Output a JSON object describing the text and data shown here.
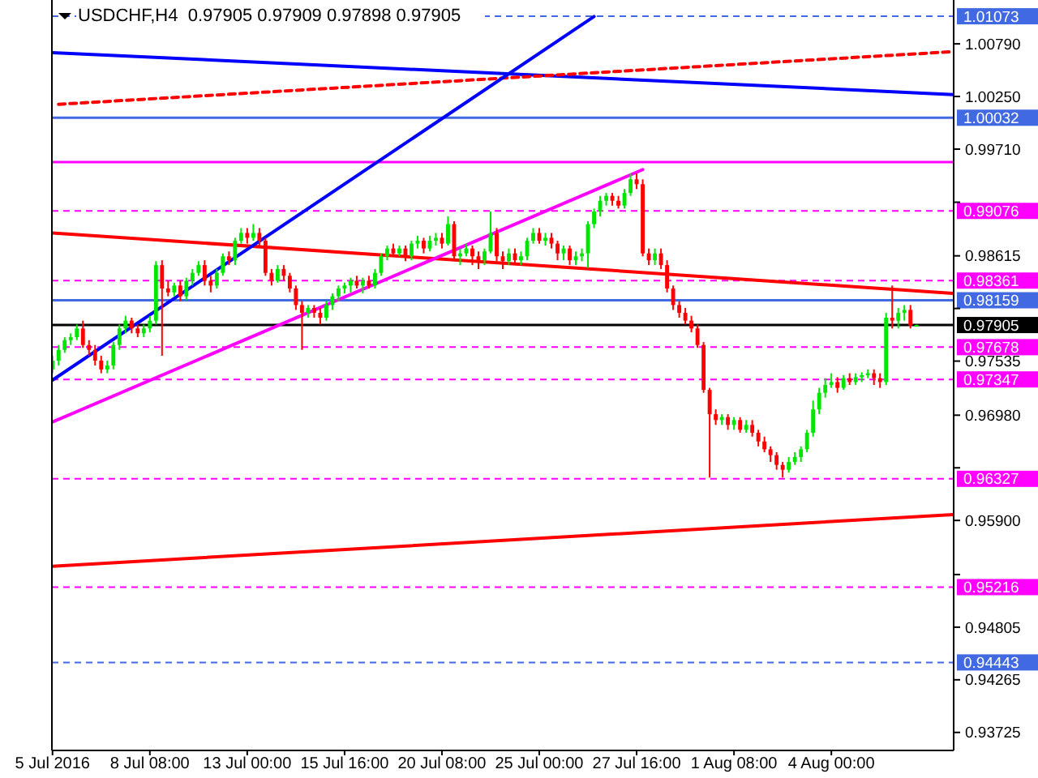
{
  "chart_data": {
    "type": "candlestick",
    "title": "USDCHF,H4  0.97905 0.97909 0.97898 0.97905",
    "categories": [
      "5 Jul 2016",
      null,
      null,
      null,
      null,
      null,
      null,
      null,
      null,
      null,
      null,
      null,
      null,
      null,
      null,
      null,
      "8 Jul 08:00",
      null,
      null,
      null,
      null,
      null,
      null,
      null,
      null,
      null,
      null,
      null,
      null,
      null,
      null,
      null,
      "13 Jul 00:00",
      null,
      null,
      null,
      null,
      null,
      null,
      null,
      null,
      null,
      null,
      null,
      null,
      null,
      null,
      null,
      "15 Jul 16:00",
      null,
      null,
      null,
      null,
      null,
      null,
      null,
      null,
      null,
      null,
      null,
      null,
      null,
      null,
      null,
      "20 Jul 08:00",
      null,
      null,
      null,
      null,
      null,
      null,
      null,
      null,
      null,
      null,
      null,
      null,
      null,
      null,
      null,
      "25 Jul 00:00",
      null,
      null,
      null,
      null,
      null,
      null,
      null,
      null,
      null,
      null,
      null,
      null,
      null,
      null,
      null,
      "27 Jul 16:00",
      null,
      null,
      null,
      null,
      null,
      null,
      null,
      null,
      null,
      null,
      null,
      null,
      null,
      null,
      null,
      "1 Aug 08:00",
      null,
      null,
      null,
      null,
      null,
      null,
      null,
      null,
      null,
      null,
      null,
      null,
      null,
      null,
      null,
      "4 Aug 00:00",
      null,
      null,
      null,
      null,
      null,
      null,
      null,
      null,
      null,
      null,
      null,
      null,
      null,
      null,
      null,
      null,
      null,
      null,
      null,
      null
    ],
    "ohlc": [
      [
        0.9745,
        0.9759,
        0.9741,
        0.9754
      ],
      [
        0.9754,
        0.977,
        0.9749,
        0.9765
      ],
      [
        0.9765,
        0.9778,
        0.9762,
        0.9775
      ],
      [
        0.9775,
        0.9782,
        0.977,
        0.9778
      ],
      [
        0.9778,
        0.9791,
        0.9775,
        0.9787
      ],
      [
        0.9787,
        0.9795,
        0.9767,
        0.977
      ],
      [
        0.977,
        0.9775,
        0.9759,
        0.9765
      ],
      [
        0.9765,
        0.977,
        0.9749,
        0.9754
      ],
      [
        0.9754,
        0.9759,
        0.9741,
        0.9745
      ],
      [
        0.9745,
        0.9754,
        0.9741,
        0.9749
      ],
      [
        0.9749,
        0.9773,
        0.9745,
        0.977
      ],
      [
        0.977,
        0.9791,
        0.9765,
        0.9787
      ],
      [
        0.9787,
        0.98,
        0.9782,
        0.9795
      ],
      [
        0.9795,
        0.9798,
        0.9782,
        0.9787
      ],
      [
        0.9787,
        0.9791,
        0.9778,
        0.9782
      ],
      [
        0.9782,
        0.9791,
        0.9778,
        0.9787
      ],
      [
        0.9787,
        0.98,
        0.9783,
        0.9795
      ],
      [
        0.9795,
        0.9856,
        0.9791,
        0.9852
      ],
      [
        0.9852,
        0.9857,
        0.9759,
        0.9828
      ],
      [
        0.9828,
        0.9836,
        0.982,
        0.9824
      ],
      [
        0.9824,
        0.9834,
        0.982,
        0.9831
      ],
      [
        0.9831,
        0.9836,
        0.9815,
        0.982
      ],
      [
        0.982,
        0.9839,
        0.9816,
        0.9836
      ],
      [
        0.9836,
        0.9848,
        0.9831,
        0.9844
      ],
      [
        0.9844,
        0.9856,
        0.9841,
        0.9852
      ],
      [
        0.9852,
        0.9857,
        0.9831,
        0.9836
      ],
      [
        0.9836,
        0.9841,
        0.9824,
        0.9831
      ],
      [
        0.9831,
        0.9848,
        0.9828,
        0.9844
      ],
      [
        0.9844,
        0.9864,
        0.9841,
        0.9861
      ],
      [
        0.9861,
        0.9866,
        0.9852,
        0.9857
      ],
      [
        0.9857,
        0.988,
        0.9852,
        0.9877
      ],
      [
        0.9877,
        0.989,
        0.9874,
        0.9885
      ],
      [
        0.9885,
        0.989,
        0.9874,
        0.988
      ],
      [
        0.988,
        0.9894,
        0.9877,
        0.9885
      ],
      [
        0.9885,
        0.989,
        0.9872,
        0.9877
      ],
      [
        0.9877,
        0.988,
        0.9841,
        0.9844
      ],
      [
        0.9844,
        0.9848,
        0.9831,
        0.9836
      ],
      [
        0.9836,
        0.9852,
        0.9834,
        0.9848
      ],
      [
        0.9848,
        0.9852,
        0.9836,
        0.9841
      ],
      [
        0.9841,
        0.9844,
        0.9824,
        0.9828
      ],
      [
        0.9828,
        0.9831,
        0.9806,
        0.9811
      ],
      [
        0.9811,
        0.9815,
        0.9765,
        0.9803
      ],
      [
        0.9803,
        0.9811,
        0.9798,
        0.9808
      ],
      [
        0.9808,
        0.9811,
        0.9798,
        0.9803
      ],
      [
        0.9803,
        0.9808,
        0.9791,
        0.9798
      ],
      [
        0.9798,
        0.9815,
        0.9795,
        0.9811
      ],
      [
        0.9811,
        0.9823,
        0.9806,
        0.982
      ],
      [
        0.982,
        0.9831,
        0.9815,
        0.9828
      ],
      [
        0.9828,
        0.9834,
        0.9823,
        0.9831
      ],
      [
        0.9831,
        0.9839,
        0.9824,
        0.9836
      ],
      [
        0.9836,
        0.9841,
        0.9828,
        0.9831
      ],
      [
        0.9831,
        0.9839,
        0.9823,
        0.9836
      ],
      [
        0.9836,
        0.9841,
        0.9828,
        0.9831
      ],
      [
        0.9831,
        0.9848,
        0.9828,
        0.9844
      ],
      [
        0.9844,
        0.9864,
        0.9841,
        0.9861
      ],
      [
        0.9861,
        0.9872,
        0.9857,
        0.9869
      ],
      [
        0.9869,
        0.9874,
        0.9861,
        0.9864
      ],
      [
        0.9864,
        0.9872,
        0.9861,
        0.9869
      ],
      [
        0.9869,
        0.9872,
        0.9856,
        0.9861
      ],
      [
        0.9861,
        0.9877,
        0.9857,
        0.9874
      ],
      [
        0.9874,
        0.9882,
        0.9869,
        0.9877
      ],
      [
        0.9877,
        0.988,
        0.9864,
        0.9869
      ],
      [
        0.9869,
        0.9882,
        0.9866,
        0.9877
      ],
      [
        0.9877,
        0.9885,
        0.9872,
        0.988
      ],
      [
        0.988,
        0.9885,
        0.9869,
        0.9874
      ],
      [
        0.9874,
        0.9902,
        0.9872,
        0.9894
      ],
      [
        0.9894,
        0.9897,
        0.9856,
        0.9861
      ],
      [
        0.9861,
        0.9869,
        0.9852,
        0.9864
      ],
      [
        0.9864,
        0.9874,
        0.9861,
        0.9869
      ],
      [
        0.9869,
        0.9872,
        0.9852,
        0.9861
      ],
      [
        0.9861,
        0.9866,
        0.9848,
        0.9857
      ],
      [
        0.9857,
        0.9869,
        0.9852,
        0.9866
      ],
      [
        0.9866,
        0.9907,
        0.9864,
        0.9885
      ],
      [
        0.9885,
        0.989,
        0.9856,
        0.9861
      ],
      [
        0.9861,
        0.9866,
        0.9848,
        0.9856
      ],
      [
        0.9856,
        0.9869,
        0.9852,
        0.9864
      ],
      [
        0.9864,
        0.9869,
        0.9852,
        0.9857
      ],
      [
        0.9857,
        0.9866,
        0.9852,
        0.9861
      ],
      [
        0.9861,
        0.988,
        0.9857,
        0.9877
      ],
      [
        0.9877,
        0.989,
        0.9874,
        0.9885
      ],
      [
        0.9885,
        0.989,
        0.9874,
        0.9877
      ],
      [
        0.9877,
        0.9885,
        0.9872,
        0.988
      ],
      [
        0.988,
        0.9885,
        0.9869,
        0.9874
      ],
      [
        0.9874,
        0.9877,
        0.9857,
        0.9864
      ],
      [
        0.9864,
        0.9872,
        0.9857,
        0.9869
      ],
      [
        0.9869,
        0.9872,
        0.9852,
        0.9857
      ],
      [
        0.9857,
        0.9866,
        0.9852,
        0.9861
      ],
      [
        0.9861,
        0.9869,
        0.9856,
        0.9864
      ],
      [
        0.9864,
        0.9897,
        0.9849,
        0.9894
      ],
      [
        0.9894,
        0.991,
        0.989,
        0.9907
      ],
      [
        0.9907,
        0.9923,
        0.9902,
        0.9918
      ],
      [
        0.9918,
        0.9926,
        0.9913,
        0.9923
      ],
      [
        0.9923,
        0.9926,
        0.9913,
        0.9918
      ],
      [
        0.9918,
        0.9923,
        0.991,
        0.9913
      ],
      [
        0.9913,
        0.993,
        0.991,
        0.9926
      ],
      [
        0.9926,
        0.9946,
        0.9923,
        0.994
      ],
      [
        0.994,
        0.9946,
        0.993,
        0.9935
      ],
      [
        0.9935,
        0.994,
        0.9861,
        0.9864
      ],
      [
        0.9864,
        0.9869,
        0.9852,
        0.9857
      ],
      [
        0.9857,
        0.9869,
        0.9852,
        0.9864
      ],
      [
        0.9864,
        0.9869,
        0.9848,
        0.9852
      ],
      [
        0.9852,
        0.9857,
        0.9824,
        0.9828
      ],
      [
        0.9828,
        0.9831,
        0.9806,
        0.9811
      ],
      [
        0.9811,
        0.9815,
        0.9798,
        0.9803
      ],
      [
        0.9803,
        0.9808,
        0.9791,
        0.9795
      ],
      [
        0.9795,
        0.98,
        0.9783,
        0.9787
      ],
      [
        0.9787,
        0.9791,
        0.9767,
        0.977
      ],
      [
        0.977,
        0.9773,
        0.9721,
        0.9724
      ],
      [
        0.9724,
        0.9726,
        0.9634,
        0.9699
      ],
      [
        0.9699,
        0.9704,
        0.9688,
        0.9693
      ],
      [
        0.9693,
        0.9699,
        0.9688,
        0.9696
      ],
      [
        0.9696,
        0.9699,
        0.9683,
        0.9688
      ],
      [
        0.9688,
        0.9696,
        0.9683,
        0.9693
      ],
      [
        0.9693,
        0.9696,
        0.968,
        0.9683
      ],
      [
        0.9683,
        0.9693,
        0.968,
        0.9688
      ],
      [
        0.9688,
        0.9693,
        0.9676,
        0.968
      ],
      [
        0.968,
        0.9683,
        0.9666,
        0.9671
      ],
      [
        0.9671,
        0.9676,
        0.966,
        0.9663
      ],
      [
        0.9663,
        0.9666,
        0.965,
        0.9657
      ],
      [
        0.9657,
        0.966,
        0.9642,
        0.9647
      ],
      [
        0.9647,
        0.965,
        0.9634,
        0.9642
      ],
      [
        0.9642,
        0.9655,
        0.9639,
        0.965
      ],
      [
        0.965,
        0.966,
        0.9647,
        0.9655
      ],
      [
        0.9655,
        0.9666,
        0.965,
        0.9663
      ],
      [
        0.9663,
        0.9683,
        0.966,
        0.968
      ],
      [
        0.968,
        0.9713,
        0.9676,
        0.9704
      ],
      [
        0.9704,
        0.9726,
        0.9699,
        0.9721
      ],
      [
        0.9721,
        0.9736,
        0.9716,
        0.9729
      ],
      [
        0.9729,
        0.9741,
        0.9726,
        0.9732
      ],
      [
        0.9732,
        0.9737,
        0.9721,
        0.9726
      ],
      [
        0.9726,
        0.9739,
        0.9724,
        0.9736
      ],
      [
        0.9736,
        0.9741,
        0.9729,
        0.9732
      ],
      [
        0.9732,
        0.9741,
        0.9729,
        0.9737
      ],
      [
        0.9737,
        0.9742,
        0.9732,
        0.9739
      ],
      [
        0.9739,
        0.9745,
        0.9736,
        0.9741
      ],
      [
        0.9741,
        0.9745,
        0.9729,
        0.9736
      ],
      [
        0.9736,
        0.9741,
        0.9726,
        0.9732
      ],
      [
        0.9732,
        0.9803,
        0.9729,
        0.9798
      ],
      [
        0.9798,
        0.9831,
        0.9787,
        0.9795
      ],
      [
        0.9795,
        0.9808,
        0.9787,
        0.9803
      ],
      [
        0.9803,
        0.9811,
        0.9795,
        0.9806
      ],
      [
        0.9806,
        0.9811,
        0.9787,
        0.979
      ],
      [
        0.97905,
        0.97909,
        0.97898,
        0.97905
      ],
      null,
      null,
      null,
      null,
      null,
      null
    ],
    "colors": [
      "#00e600",
      "#00e600",
      "#00e600",
      "#00e600",
      "#00e600",
      "#ff0000",
      "#ff0000",
      "#ff0000",
      "#ff0000",
      "#00e600",
      "#00e600",
      "#00e600",
      "#00e600",
      "#ff0000",
      "#ff0000",
      "#00e600",
      "#00e600",
      "#00e600",
      "#ff0000",
      "#ff0000",
      "#00e600",
      "#ff0000",
      "#00e600",
      "#00e600",
      "#00e600",
      "#ff0000",
      "#ff0000",
      "#00e600",
      "#00e600",
      "#ff0000",
      "#00e600",
      "#00e600",
      "#ff0000",
      "#00e600",
      "#ff0000",
      "#ff0000",
      "#ff0000",
      "#00e600",
      "#ff0000",
      "#ff0000",
      "#ff0000",
      "#ff0000",
      "#00e600",
      "#ff0000",
      "#ff0000",
      "#00e600",
      "#00e600",
      "#00e600",
      "#00e600",
      "#00e600",
      "#ff0000",
      "#00e600",
      "#ff0000",
      "#00e600",
      "#00e600",
      "#00e600",
      "#ff0000",
      "#00e600",
      "#ff0000",
      "#00e600",
      "#00e600",
      "#ff0000",
      "#00e600",
      "#00e600",
      "#ff0000",
      "#00e600",
      "#ff0000",
      "#00e600",
      "#00e600",
      "#ff0000",
      "#ff0000",
      "#00e600",
      "#00e600",
      "#ff0000",
      "#ff0000",
      "#00e600",
      "#ff0000",
      "#00e600",
      "#00e600",
      "#00e600",
      "#ff0000",
      "#00e600",
      "#ff0000",
      "#ff0000",
      "#00e600",
      "#ff0000",
      "#00e600",
      "#00e600",
      "#00e600",
      "#00e600",
      "#00e600",
      "#00e600",
      "#ff0000",
      "#ff0000",
      "#00e600",
      "#00e600",
      "#ff0000",
      "#ff0000",
      "#ff0000",
      "#00e600",
      "#ff0000",
      "#ff0000",
      "#ff0000",
      "#ff0000",
      "#ff0000",
      "#ff0000",
      "#ff0000",
      "#ff0000",
      "#ff0000",
      "#ff0000",
      "#00e600",
      "#ff0000",
      "#00e600",
      "#ff0000",
      "#00e600",
      "#ff0000",
      "#ff0000",
      "#ff0000",
      "#ff0000",
      "#ff0000",
      "#ff0000",
      "#00e600",
      "#00e600",
      "#00e600",
      "#00e600",
      "#00e600",
      "#00e600",
      "#00e600",
      "#00e600",
      "#ff0000",
      "#00e600",
      "#ff0000",
      "#00e600",
      "#00e600",
      "#00e600",
      "#ff0000",
      "#ff0000",
      "#00e600",
      "#ff0000",
      "#00e600",
      "#00e600",
      "#ff0000",
      "#00e600",
      null,
      null,
      null,
      null,
      null,
      null
    ],
    "series": [
      {
        "type": "line",
        "values": [
          0.9885,
          null,
          null,
          null,
          null,
          null,
          null,
          null,
          null,
          null,
          null,
          null,
          null,
          null,
          null,
          null,
          null,
          null,
          null,
          null,
          null,
          null,
          null,
          null,
          null,
          null,
          null,
          null,
          null,
          null,
          null,
          null,
          null,
          null,
          null,
          null,
          null,
          null,
          null,
          null,
          null,
          null,
          null,
          null,
          null,
          null,
          null,
          null,
          null,
          null,
          null,
          null,
          null,
          null,
          null,
          null,
          null,
          null,
          null,
          null,
          null,
          null,
          null,
          null,
          null,
          null,
          null,
          null,
          null,
          null,
          null,
          null,
          null,
          null,
          null,
          null,
          null,
          null,
          null,
          null,
          null,
          null,
          null,
          null,
          null,
          null,
          null,
          null,
          null,
          null,
          null,
          null,
          null,
          null,
          null,
          null,
          null,
          null,
          null,
          null,
          null,
          null,
          null,
          null,
          null,
          null,
          null,
          null,
          null,
          null,
          null,
          null,
          null,
          null,
          null,
          null,
          null,
          null,
          null,
          null,
          null,
          null,
          null,
          null,
          null,
          null,
          null,
          null,
          null,
          null,
          null,
          null,
          null,
          null,
          null,
          null,
          null,
          null,
          null,
          null,
          null,
          null,
          null,
          null,
          null,
          null,
          null,
          null,
          0.9823
        ],
        "color": "#ff0000",
        "line_style": "solid"
      },
      {
        "type": "line",
        "values": [
          0.9543,
          null,
          null,
          null,
          null,
          null,
          null,
          null,
          null,
          null,
          null,
          null,
          null,
          null,
          null,
          null,
          null,
          null,
          null,
          null,
          null,
          null,
          null,
          null,
          null,
          null,
          null,
          null,
          null,
          null,
          null,
          null,
          null,
          null,
          null,
          null,
          null,
          null,
          null,
          null,
          null,
          null,
          null,
          null,
          null,
          null,
          null,
          null,
          null,
          null,
          null,
          null,
          null,
          null,
          null,
          null,
          null,
          null,
          null,
          null,
          null,
          null,
          null,
          null,
          null,
          null,
          null,
          null,
          null,
          null,
          null,
          null,
          null,
          null,
          null,
          null,
          null,
          null,
          null,
          null,
          null,
          null,
          null,
          null,
          null,
          null,
          null,
          null,
          null,
          null,
          null,
          null,
          null,
          null,
          null,
          null,
          null,
          null,
          null,
          null,
          null,
          null,
          null,
          null,
          null,
          null,
          null,
          null,
          null,
          null,
          null,
          null,
          null,
          null,
          null,
          null,
          null,
          null,
          null,
          null,
          null,
          null,
          null,
          null,
          null,
          null,
          null,
          null,
          null,
          null,
          null,
          null,
          null,
          null,
          null,
          null,
          null,
          null,
          null,
          null,
          null,
          null,
          null,
          null,
          null,
          null,
          null,
          null,
          0.9596
        ],
        "color": "#ff0000",
        "line_style": "solid"
      },
      {
        "type": "line",
        "values": [
          1.007,
          null,
          null,
          null,
          null,
          null,
          null,
          null,
          null,
          null,
          null,
          null,
          null,
          null,
          null,
          null,
          null,
          null,
          null,
          null,
          null,
          null,
          null,
          null,
          null,
          null,
          null,
          null,
          null,
          null,
          null,
          null,
          null,
          null,
          null,
          null,
          null,
          null,
          null,
          null,
          null,
          null,
          null,
          null,
          null,
          null,
          null,
          null,
          null,
          null,
          null,
          null,
          null,
          null,
          null,
          null,
          null,
          null,
          null,
          null,
          null,
          null,
          null,
          null,
          null,
          null,
          null,
          null,
          null,
          null,
          null,
          null,
          null,
          null,
          null,
          null,
          null,
          null,
          null,
          null,
          null,
          null,
          null,
          null,
          null,
          null,
          null,
          null,
          null,
          null,
          null,
          null,
          null,
          null,
          null,
          null,
          null,
          null,
          null,
          null,
          null,
          null,
          null,
          null,
          null,
          null,
          null,
          null,
          null,
          null,
          null,
          null,
          null,
          null,
          null,
          null,
          null,
          null,
          null,
          null,
          null,
          null,
          null,
          null,
          null,
          null,
          null,
          null,
          null,
          null,
          null,
          null,
          null,
          null,
          null,
          null,
          null,
          null,
          null,
          null,
          null,
          null,
          null,
          null,
          null,
          null,
          null,
          null,
          1.0027
        ],
        "color": "#0000ff",
        "line_style": "solid"
      },
      {
        "type": "line",
        "values": [
          null,
          1.0017,
          null,
          null,
          null,
          null,
          null,
          null,
          null,
          null,
          null,
          null,
          null,
          null,
          null,
          null,
          null,
          null,
          null,
          null,
          null,
          null,
          null,
          null,
          null,
          null,
          null,
          null,
          null,
          null,
          null,
          null,
          null,
          null,
          null,
          null,
          null,
          null,
          null,
          null,
          null,
          null,
          null,
          null,
          null,
          null,
          null,
          null,
          null,
          null,
          null,
          null,
          null,
          null,
          null,
          null,
          null,
          null,
          null,
          null,
          null,
          null,
          null,
          null,
          null,
          null,
          null,
          null,
          null,
          null,
          null,
          null,
          null,
          null,
          null,
          null,
          null,
          null,
          null,
          null,
          null,
          null,
          null,
          null,
          null,
          null,
          null,
          null,
          null,
          null,
          null,
          null,
          null,
          null,
          null,
          null,
          null,
          null,
          null,
          null,
          null,
          null,
          null,
          null,
          null,
          null,
          null,
          null,
          null,
          null,
          null,
          null,
          null,
          null,
          null,
          null,
          null,
          null,
          null,
          null,
          null,
          null,
          null,
          null,
          null,
          null,
          null,
          null,
          null,
          null,
          null,
          null,
          null,
          null,
          null,
          null,
          null,
          null,
          null,
          null,
          null,
          null,
          null,
          null,
          null,
          null,
          null,
          null,
          1.0071
        ],
        "color": "#ff0000",
        "line_style": "dashed"
      },
      {
        "type": "line",
        "values": [
          0.9734,
          null,
          null,
          null,
          null,
          null,
          null,
          null,
          null,
          null,
          null,
          null,
          null,
          null,
          null,
          null,
          null,
          null,
          null,
          null,
          null,
          null,
          null,
          null,
          null,
          null,
          null,
          null,
          null,
          null,
          null,
          null,
          null,
          null,
          null,
          null,
          null,
          null,
          null,
          null,
          null,
          null,
          null,
          null,
          null,
          null,
          null,
          null,
          null,
          null,
          null,
          null,
          null,
          null,
          null,
          null,
          null,
          null,
          null,
          null,
          null,
          null,
          null,
          null,
          null,
          null,
          null,
          null,
          null,
          null,
          null,
          null,
          null,
          null,
          null,
          null,
          null,
          null,
          null,
          null,
          null,
          null,
          null,
          null,
          null,
          null,
          null,
          null,
          null,
          1.0107,
          null,
          null,
          null,
          null,
          null,
          null,
          null,
          null,
          null,
          null,
          null,
          null,
          null,
          null,
          null,
          null,
          null,
          null,
          null,
          null,
          null,
          null,
          null,
          null,
          null,
          null,
          null,
          null,
          null,
          null,
          null,
          null,
          null,
          null,
          null,
          null,
          null,
          null,
          null,
          null,
          null,
          null,
          null,
          null,
          null,
          null,
          null,
          null,
          null,
          null,
          null,
          null,
          null,
          null,
          null,
          null,
          null,
          null,
          null
        ],
        "color": "#0000ff",
        "line_style": "solid"
      },
      {
        "type": "line",
        "values": [
          0.9691,
          null,
          null,
          null,
          null,
          null,
          null,
          null,
          null,
          null,
          null,
          null,
          null,
          null,
          null,
          null,
          null,
          null,
          null,
          null,
          null,
          null,
          null,
          null,
          null,
          null,
          null,
          null,
          null,
          null,
          null,
          null,
          null,
          null,
          null,
          null,
          null,
          null,
          null,
          null,
          null,
          null,
          null,
          null,
          null,
          null,
          null,
          null,
          null,
          null,
          null,
          null,
          null,
          null,
          null,
          null,
          null,
          null,
          null,
          null,
          null,
          null,
          null,
          null,
          null,
          null,
          null,
          null,
          null,
          null,
          null,
          null,
          null,
          null,
          null,
          null,
          null,
          null,
          null,
          null,
          null,
          null,
          null,
          null,
          null,
          null,
          null,
          null,
          null,
          null,
          null,
          null,
          null,
          null,
          null,
          null,
          null,
          0.995,
          null,
          null,
          null,
          null,
          null,
          null,
          null,
          null,
          null,
          null,
          null,
          null,
          null,
          null,
          null,
          null,
          null,
          null,
          null,
          null,
          null,
          null,
          null,
          null,
          null,
          null,
          null,
          null,
          null,
          null,
          null,
          null,
          null,
          null,
          null,
          null,
          null,
          null,
          null,
          null,
          null,
          null,
          null,
          null,
          null,
          null,
          null,
          null,
          null,
          null,
          null
        ],
        "color": "#ff00ff",
        "line_style": "solid"
      }
    ],
    "ref_lines": [
      {
        "axis": "y",
        "value": 1.01073,
        "label": "1.01073",
        "color": "#4169e1",
        "line_style": "dashed"
      },
      {
        "axis": "y",
        "value": 1.00032,
        "label": "1.00032",
        "color": "#4169e1",
        "line_style": "solid"
      },
      {
        "axis": "y",
        "value": 0.99577,
        "color": "#ff00ff",
        "line_style": "solid"
      },
      {
        "axis": "y",
        "value": 0.99076,
        "label": "0.99076",
        "color": "#ff00ff",
        "line_style": "dashed"
      },
      {
        "axis": "y",
        "value": 0.98361,
        "label": "0.98361",
        "color": "#ff00ff",
        "line_style": "dashed"
      },
      {
        "axis": "y",
        "value": 0.98159,
        "label": "0.98159",
        "color": "#4169e1",
        "line_style": "solid"
      },
      {
        "axis": "y",
        "value": 0.97905,
        "label": "0.97905",
        "color": "#000000",
        "line_style": "solid"
      },
      {
        "axis": "y",
        "value": 0.97678,
        "label": "0.97678",
        "color": "#ff00ff",
        "line_style": "dashed"
      },
      {
        "axis": "y",
        "value": 0.97347,
        "label": "0.97347",
        "color": "#ff00ff",
        "line_style": "dashed"
      },
      {
        "axis": "y",
        "value": 0.96327,
        "label": "0.96327",
        "color": "#ff00ff",
        "line_style": "dashed"
      },
      {
        "axis": "y",
        "value": 0.95216,
        "label": "0.95216",
        "color": "#ff00ff",
        "line_style": "dashed"
      },
      {
        "axis": "y",
        "value": 0.94443,
        "label": "0.94443",
        "color": "#4169e1",
        "line_style": "dashed"
      }
    ],
    "ylim": [
      0.9354,
      1.0124
    ],
    "yticks": [
      {
        "value": 1.0079,
        "label": "1.00790"
      },
      {
        "value": 1.0025,
        "label": "1.00250"
      },
      {
        "value": 0.9971,
        "label": "0.99710"
      },
      {
        "value": 0.99165,
        "label": null
      },
      {
        "value": 0.98615,
        "label": "0.98615"
      },
      {
        "value": 0.98075,
        "label": null
      },
      {
        "value": 0.97535,
        "label": "0.97535"
      },
      {
        "value": 0.9698,
        "label": "0.96980"
      },
      {
        "value": 0.9644,
        "label": null
      },
      {
        "value": 0.959,
        "label": "0.95900"
      },
      {
        "value": 0.95345,
        "label": null
      },
      {
        "value": 0.94805,
        "label": "0.94805"
      },
      {
        "value": 0.94265,
        "label": "0.94265"
      },
      {
        "value": 0.93725,
        "label": "0.93725"
      }
    ],
    "grid": false
  }
}
